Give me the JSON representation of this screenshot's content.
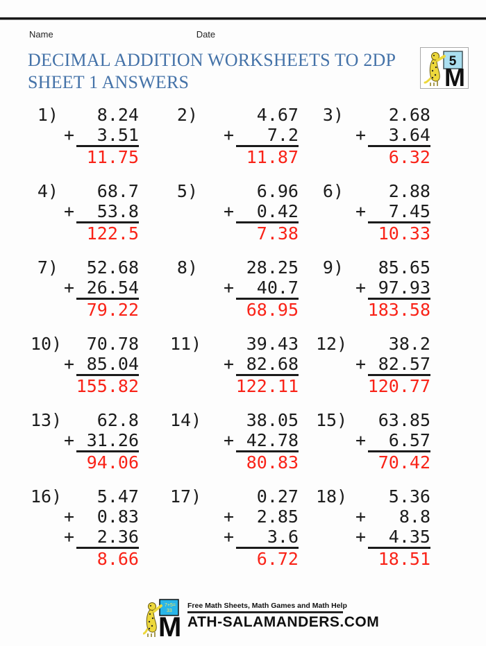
{
  "page": {
    "name_label": "Name",
    "date_label": "Date",
    "title_line1": "DECIMAL ADDITION WORKSHEETS TO 2DP",
    "title_line2": "SHEET 1 ANSWERS"
  },
  "grade_logo": {
    "badge": "5"
  },
  "problems": [
    {
      "label": "1)",
      "addends": [
        "8.24",
        "3.51"
      ],
      "answer": "11.75"
    },
    {
      "label": "2)",
      "addends": [
        "4.67",
        "7.2"
      ],
      "answer": "11.87"
    },
    {
      "label": "3)",
      "addends": [
        "2.68",
        "3.64"
      ],
      "answer": "6.32"
    },
    {
      "label": "4)",
      "addends": [
        "68.7",
        "53.8"
      ],
      "answer": "122.5"
    },
    {
      "label": "5)",
      "addends": [
        "6.96",
        "0.42"
      ],
      "answer": "7.38"
    },
    {
      "label": "6)",
      "addends": [
        "2.88",
        "7.45"
      ],
      "answer": "10.33"
    },
    {
      "label": "7)",
      "addends": [
        "52.68",
        "26.54"
      ],
      "answer": "79.22"
    },
    {
      "label": "8)",
      "addends": [
        "28.25",
        "40.7"
      ],
      "answer": "68.95"
    },
    {
      "label": "9)",
      "addends": [
        "85.65",
        "97.93"
      ],
      "answer": "183.58"
    },
    {
      "label": "10)",
      "addends": [
        "70.78",
        "85.04"
      ],
      "answer": "155.82"
    },
    {
      "label": "11)",
      "addends": [
        "39.43",
        "82.68"
      ],
      "answer": "122.11"
    },
    {
      "label": "12)",
      "addends": [
        "38.2",
        "82.57"
      ],
      "answer": "120.77"
    },
    {
      "label": "13)",
      "addends": [
        "62.8",
        "31.26"
      ],
      "answer": "94.06"
    },
    {
      "label": "14)",
      "addends": [
        "38.05",
        "42.78"
      ],
      "answer": "80.83"
    },
    {
      "label": "15)",
      "addends": [
        "63.85",
        "6.57"
      ],
      "answer": "70.42"
    },
    {
      "label": "16)",
      "addends": [
        "5.47",
        "0.83",
        "2.36"
      ],
      "answer": "8.66"
    },
    {
      "label": "17)",
      "addends": [
        "0.27",
        "2.85",
        "3.6"
      ],
      "answer": "6.72"
    },
    {
      "label": "18)",
      "addends": [
        "5.36",
        "8.8",
        "4.35"
      ],
      "answer": "18.51"
    }
  ],
  "plus_sign": "+",
  "footer": {
    "tagline": "Free Math Sheets, Math Games and Math Help",
    "board_line1": "7+5=",
    "board_line2": "33",
    "site_text": "ATH-SALAMANDERS.COM"
  },
  "colors": {
    "title_blue": "#4472a8",
    "answer_red": "#f92318"
  }
}
